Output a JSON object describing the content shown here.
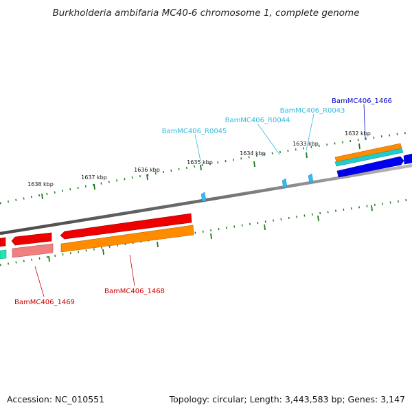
{
  "title": "Burkholderia ambifaria MC40-6 chromosome 1, complete genome",
  "accession_text": "Accession: NC_010551",
  "summary_text": "Topology: circular; Length: 3,443,583 bp; Genes: 3,147",
  "scale_labels": [
    "1632 kbp",
    "1633 kbp",
    "1634 kbp",
    "1635 kbp",
    "1636 kbp",
    "1637 kbp",
    "1638 kbp"
  ],
  "gene_labels": [
    {
      "text": "BamMC406_1466",
      "color": "#0000cc"
    },
    {
      "text": "BamMC406_R0043",
      "color": "#33bbdd"
    },
    {
      "text": "BamMC406_R0044",
      "color": "#33bbdd"
    },
    {
      "text": "BamMC406_R0045",
      "color": "#33bbdd"
    },
    {
      "text": "BamMC406_1468",
      "color": "#cc0000"
    },
    {
      "text": "BamMC406_1469",
      "color": "#cc0000"
    }
  ],
  "colors": {
    "backbone": "#7a7a7a",
    "tick": "#1a7a1a",
    "cds": "#ee0000",
    "cds_pseudo": "#ff8c00",
    "rna": "#22cccc",
    "blue_cds": "#0000ee",
    "pink": "#f08080",
    "teal": "#1ee8b0",
    "rna_marker": "#3ab8f0"
  }
}
